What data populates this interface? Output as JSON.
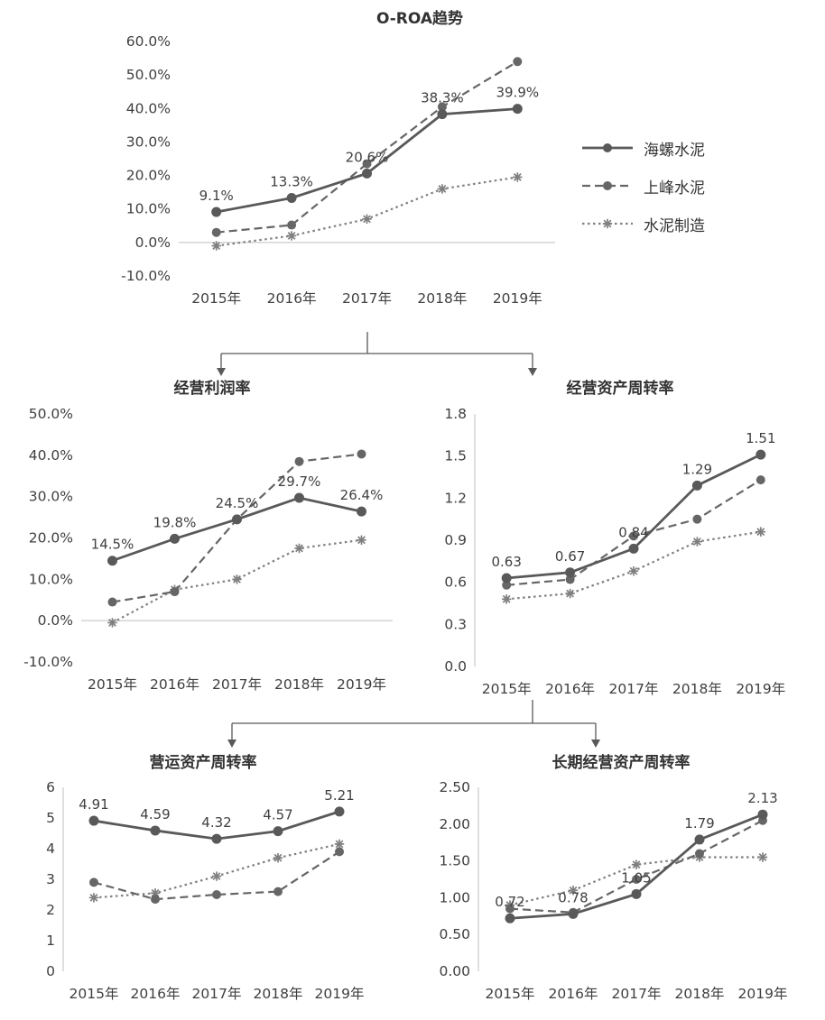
{
  "legend": {
    "items": [
      {
        "label": "海螺水泥",
        "line_style": "solid",
        "marker": "circle",
        "color": "#595959"
      },
      {
        "label": "上峰水泥",
        "line_style": "dashed",
        "marker": "circle",
        "color": "#666666"
      },
      {
        "label": "水泥制造",
        "line_style": "dotted",
        "marker": "star",
        "color": "#7f7f7f"
      }
    ]
  },
  "chart_data": [
    {
      "type": "line",
      "title": "O-ROA趋势",
      "categories": [
        "2015年",
        "2016年",
        "2017年",
        "2018年",
        "2019年"
      ],
      "ylim": [
        -10,
        60
      ],
      "baseline_value": 0,
      "axis_left": false,
      "grid": "off",
      "legend_position": "right",
      "y_ticks": [
        {
          "v": -10,
          "t": "-10.0%"
        },
        {
          "v": 0,
          "t": "0.0%"
        },
        {
          "v": 10,
          "t": "10.0%"
        },
        {
          "v": 20,
          "t": "20.0%"
        },
        {
          "v": 30,
          "t": "30.0%"
        },
        {
          "v": 40,
          "t": "40.0%"
        },
        {
          "v": 50,
          "t": "50.0%"
        },
        {
          "v": 60,
          "t": "60.0%"
        }
      ],
      "series": [
        {
          "name": "海螺水泥",
          "values": [
            9.1,
            13.3,
            20.6,
            38.3,
            39.9
          ],
          "labels": [
            "9.1%",
            "13.3%",
            "20.6%",
            "38.3%",
            "39.9%"
          ]
        },
        {
          "name": "上峰水泥",
          "values": [
            3.0,
            5.2,
            23.5,
            40.5,
            54.0
          ]
        },
        {
          "name": "水泥制造",
          "values": [
            -1.0,
            2.0,
            7.0,
            16.0,
            19.5
          ]
        }
      ]
    },
    {
      "type": "line",
      "title": "经营利润率",
      "categories": [
        "2015年",
        "2016年",
        "2017年",
        "2018年",
        "2019年"
      ],
      "ylim": [
        -10,
        50
      ],
      "baseline_value": 0,
      "axis_left": false,
      "grid": "off",
      "y_ticks": [
        {
          "v": -10,
          "t": "-10.0%"
        },
        {
          "v": 0,
          "t": "0.0%"
        },
        {
          "v": 10,
          "t": "10.0%"
        },
        {
          "v": 20,
          "t": "20.0%"
        },
        {
          "v": 30,
          "t": "30.0%"
        },
        {
          "v": 40,
          "t": "40.0%"
        },
        {
          "v": 50,
          "t": "50.0%"
        }
      ],
      "series": [
        {
          "name": "海螺水泥",
          "values": [
            14.5,
            19.8,
            24.5,
            29.7,
            26.4
          ],
          "labels": [
            "14.5%",
            "19.8%",
            "24.5%",
            "29.7%",
            "26.4%"
          ]
        },
        {
          "name": "上峰水泥",
          "values": [
            4.5,
            7.0,
            24.5,
            38.5,
            40.3
          ]
        },
        {
          "name": "水泥制造",
          "values": [
            -0.5,
            7.5,
            10.0,
            17.5,
            19.5
          ]
        }
      ]
    },
    {
      "type": "line",
      "title": "经营资产周转率",
      "categories": [
        "2015年",
        "2016年",
        "2017年",
        "2018年",
        "2019年"
      ],
      "ylim": [
        0,
        1.8
      ],
      "baseline_value": null,
      "axis_left": true,
      "grid": "off",
      "y_ticks": [
        {
          "v": 0,
          "t": "0.0"
        },
        {
          "v": 0.3,
          "t": "0.3"
        },
        {
          "v": 0.6,
          "t": "0.6"
        },
        {
          "v": 0.9,
          "t": "0.9"
        },
        {
          "v": 1.2,
          "t": "1.2"
        },
        {
          "v": 1.5,
          "t": "1.5"
        },
        {
          "v": 1.8,
          "t": "1.8"
        }
      ],
      "series": [
        {
          "name": "海螺水泥",
          "values": [
            0.63,
            0.67,
            0.84,
            1.29,
            1.51
          ],
          "labels": [
            "0.63",
            "0.67",
            "0.84",
            "1.29",
            "1.51"
          ]
        },
        {
          "name": "上峰水泥",
          "values": [
            0.58,
            0.62,
            0.93,
            1.05,
            1.33
          ]
        },
        {
          "name": "水泥制造",
          "values": [
            0.48,
            0.52,
            0.68,
            0.89,
            0.96
          ]
        }
      ]
    },
    {
      "type": "line",
      "title": "营运资产周转率",
      "categories": [
        "2015年",
        "2016年",
        "2017年",
        "2018年",
        "2019年"
      ],
      "ylim": [
        0,
        6
      ],
      "baseline_value": null,
      "axis_left": true,
      "grid": "off",
      "y_ticks": [
        {
          "v": 0,
          "t": "0"
        },
        {
          "v": 1,
          "t": "1"
        },
        {
          "v": 2,
          "t": "2"
        },
        {
          "v": 3,
          "t": "3"
        },
        {
          "v": 4,
          "t": "4"
        },
        {
          "v": 5,
          "t": "5"
        },
        {
          "v": 6,
          "t": "6"
        }
      ],
      "series": [
        {
          "name": "海螺水泥",
          "values": [
            4.91,
            4.59,
            4.32,
            4.57,
            5.21
          ],
          "labels": [
            "4.91",
            "4.59",
            "4.32",
            "4.57",
            "5.21"
          ]
        },
        {
          "name": "上峰水泥",
          "values": [
            2.9,
            2.35,
            2.5,
            2.6,
            3.9
          ]
        },
        {
          "name": "水泥制造",
          "values": [
            2.4,
            2.55,
            3.1,
            3.7,
            4.15
          ]
        }
      ]
    },
    {
      "type": "line",
      "title": "长期经营资产周转率",
      "categories": [
        "2015年",
        "2016年",
        "2017年",
        "2018年",
        "2019年"
      ],
      "ylim": [
        0,
        2.5
      ],
      "baseline_value": null,
      "axis_left": true,
      "grid": "off",
      "y_ticks": [
        {
          "v": 0,
          "t": "0.00"
        },
        {
          "v": 0.5,
          "t": "0.50"
        },
        {
          "v": 1,
          "t": "1.00"
        },
        {
          "v": 1.5,
          "t": "1.50"
        },
        {
          "v": 2,
          "t": "2.00"
        },
        {
          "v": 2.5,
          "t": "2.50"
        }
      ],
      "series": [
        {
          "name": "海螺水泥",
          "values": [
            0.72,
            0.78,
            1.05,
            1.79,
            2.13
          ],
          "labels": [
            "0.72",
            "0.78",
            "1.05",
            "1.79",
            "2.13"
          ]
        },
        {
          "name": "上峰水泥",
          "values": [
            0.85,
            0.8,
            1.25,
            1.6,
            2.05
          ]
        },
        {
          "name": "水泥制造",
          "values": [
            0.9,
            1.1,
            1.45,
            1.55,
            1.55
          ]
        }
      ]
    }
  ]
}
